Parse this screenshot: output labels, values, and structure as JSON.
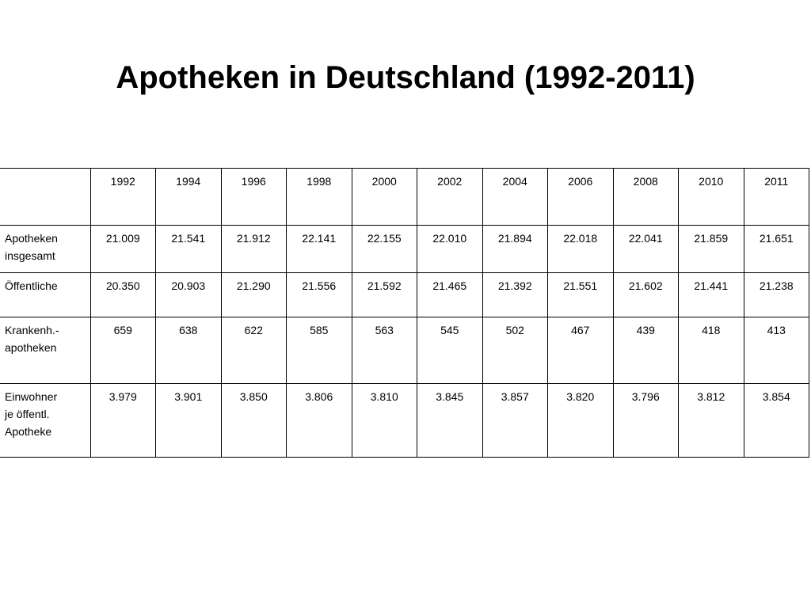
{
  "title": "Apotheken in Deutschland (1992-2011)",
  "table": {
    "corner": "",
    "years": [
      "1992",
      "1994",
      "1996",
      "1998",
      "2000",
      "2002",
      "2004",
      "2006",
      "2008",
      "2010",
      "2011"
    ],
    "rows": [
      {
        "label_lines": [
          "Apotheken",
          "insgesamt"
        ],
        "values": [
          "21.009",
          "21.541",
          "21.912",
          "22.141",
          "22.155",
          "22.010",
          "21.894",
          "22.018",
          "22.041",
          "21.859",
          "21.651"
        ]
      },
      {
        "label_lines": [
          "Öffentliche"
        ],
        "values": [
          "20.350",
          "20.903",
          "21.290",
          "21.556",
          "21.592",
          "21.465",
          "21.392",
          "21.551",
          "21.602",
          "21.441",
          "21.238"
        ]
      },
      {
        "label_lines": [
          "Krankenh.-",
          "apotheken"
        ],
        "values": [
          "659",
          "638",
          "622",
          "585",
          "563",
          "545",
          "502",
          "467",
          "439",
          "418",
          "413"
        ]
      },
      {
        "label_lines": [
          "Einwohner",
          "je öffentl.",
          "Apotheke"
        ],
        "values": [
          "3.979",
          "3.901",
          "3.850",
          "3.806",
          "3.810",
          "3.845",
          "3.857",
          "3.820",
          "3.796",
          "3.812",
          "3.854"
        ]
      }
    ]
  }
}
